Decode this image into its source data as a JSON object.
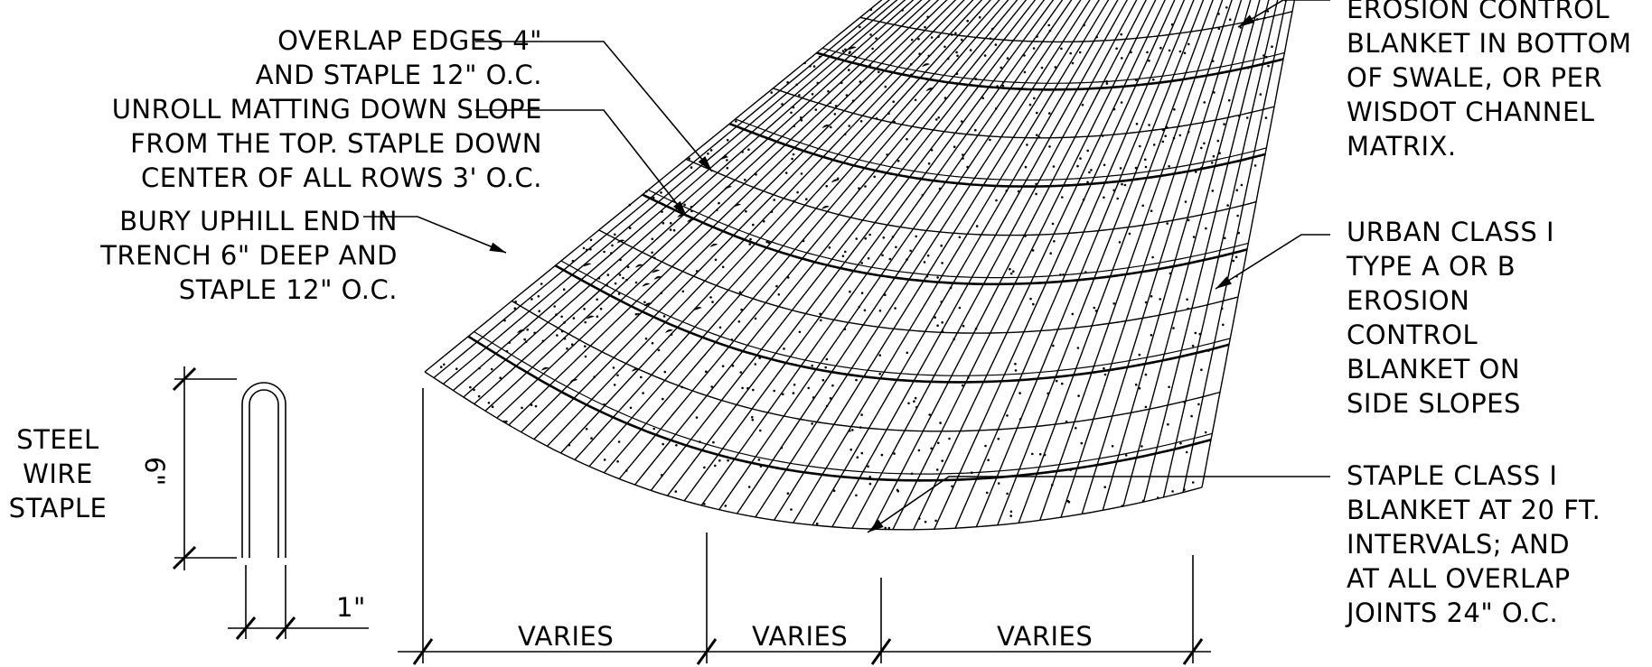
{
  "notes": {
    "overlap": [
      "OVERLAP EDGES 4\"",
      "AND STAPLE 12\" O.C."
    ],
    "unroll": [
      "UNROLL MATTING DOWN SLOPE",
      "FROM THE TOP. STAPLE DOWN",
      "CENTER OF ALL ROWS 3' O.C."
    ],
    "bury": [
      "BURY UPHILL END IN",
      "TRENCH 6\" DEEP AND",
      "STAPLE 12\" O.C."
    ],
    "swale": [
      "EROSION CONTROL",
      "BLANKET IN BOTTOM",
      "OF SWALE, OR PER",
      "WISDOT CHANNEL",
      "MATRIX."
    ],
    "urban": [
      "URBAN CLASS I",
      "TYPE A OR B",
      "EROSION",
      "CONTROL",
      "BLANKET ON",
      "SIDE SLOPES"
    ],
    "staple_class": [
      "STAPLE CLASS I",
      "BLANKET AT 20 FT.",
      "INTERVALS; AND",
      "AT ALL OVERLAP",
      "JOINTS 24\" O.C."
    ]
  },
  "staple_detail": {
    "title": [
      "STEEL",
      "WIRE",
      "STAPLE"
    ],
    "height_label": "6\"",
    "width_label": "1\""
  },
  "dimensions": [
    "VARIES",
    "VARIES",
    "VARIES"
  ]
}
